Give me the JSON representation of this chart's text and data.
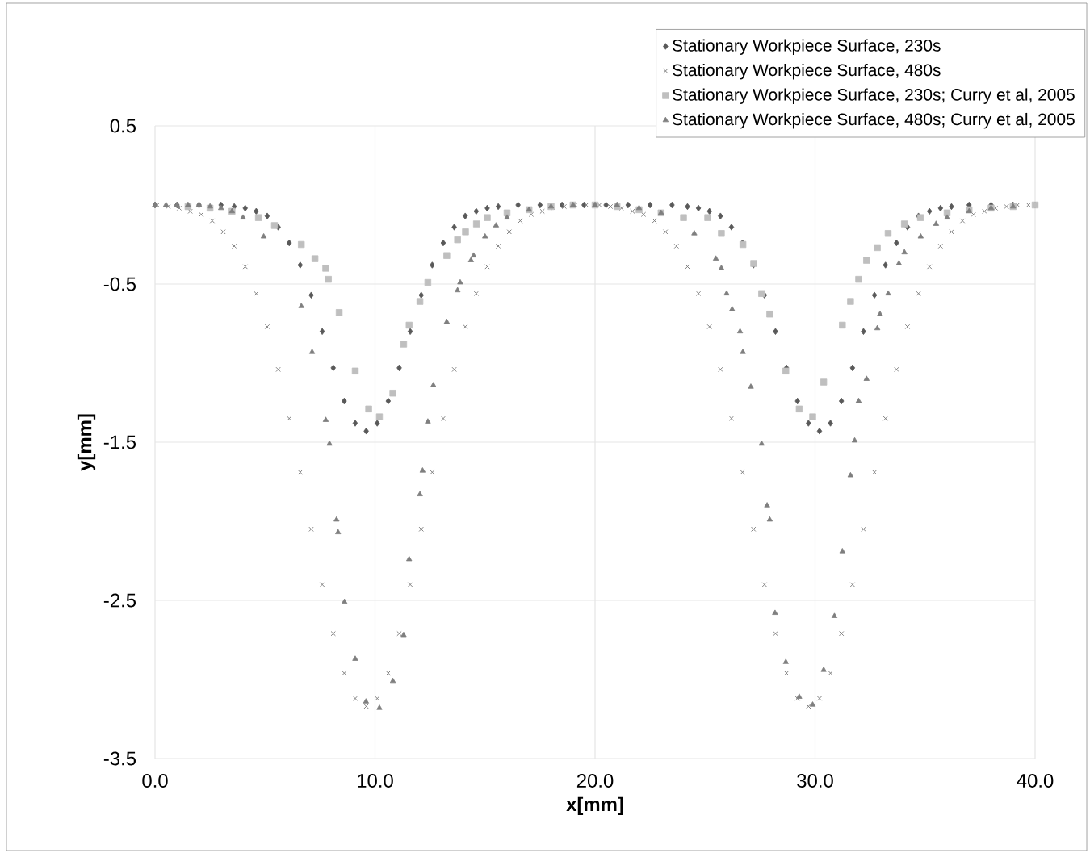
{
  "chart_data": {
    "type": "scatter",
    "xlabel": "x[mm]",
    "ylabel": "y[mm]",
    "xlim": [
      0,
      40
    ],
    "ylim": [
      -3.5,
      0.5
    ],
    "xticks": [
      {
        "value": 0,
        "label": "0.0"
      },
      {
        "value": 10,
        "label": "10.0"
      },
      {
        "value": 20,
        "label": "20.0"
      },
      {
        "value": 30,
        "label": "30.0"
      },
      {
        "value": 40,
        "label": "40.0"
      }
    ],
    "yticks": [
      0.5,
      -0.5,
      -1.5,
      -2.5,
      -3.5
    ],
    "grid": true,
    "legend": "top right",
    "series": [
      {
        "name": "Stationary Workpiece Surface, 230s",
        "color": "#595959",
        "marker": "diamond",
        "x": [
          0,
          1,
          2,
          3,
          3.6,
          4.1,
          4.6,
          5.1,
          5.6,
          6.1,
          6.6,
          7.1,
          7.6,
          8.1,
          8.6,
          9.1,
          9.6,
          10.1,
          10.6,
          11.1,
          11.6,
          12.1,
          12.6,
          13.1,
          13.6,
          14.1,
          14.6,
          15.1,
          15.6,
          16.5,
          17.5,
          18.5,
          19.5,
          20.5,
          21.5,
          22.5,
          23.5,
          24.2,
          24.7,
          25.2,
          25.7,
          26.2,
          26.7,
          27.2,
          27.7,
          28.2,
          28.7,
          29.2,
          29.7,
          30.2,
          30.7,
          31.2,
          31.7,
          32.2,
          32.7,
          33.2,
          33.7,
          34.2,
          34.7,
          35.2,
          35.7,
          36.2,
          37,
          38,
          39,
          40
        ],
        "values": [
          0,
          0,
          0,
          0,
          -0.01,
          -0.02,
          -0.04,
          -0.07,
          -0.14,
          -0.24,
          -0.38,
          -0.57,
          -0.8,
          -1.03,
          -1.24,
          -1.38,
          -1.43,
          -1.38,
          -1.24,
          -1.03,
          -0.8,
          -0.57,
          -0.38,
          -0.24,
          -0.14,
          -0.07,
          -0.04,
          -0.02,
          -0.01,
          0,
          0,
          0,
          0,
          0,
          0,
          0,
          0,
          -0.01,
          -0.02,
          -0.04,
          -0.07,
          -0.14,
          -0.24,
          -0.38,
          -0.57,
          -0.8,
          -1.03,
          -1.24,
          -1.38,
          -1.43,
          -1.38,
          -1.24,
          -1.03,
          -0.8,
          -0.57,
          -0.38,
          -0.24,
          -0.14,
          -0.07,
          -0.04,
          -0.02,
          -0.01,
          0,
          0,
          0,
          0
        ]
      },
      {
        "name": "Stationary Workpiece Surface, 480s",
        "color": "#808080",
        "marker": "cross",
        "x": [
          0.1,
          0.6,
          1.1,
          1.6,
          2.1,
          2.6,
          3.1,
          3.6,
          4.1,
          4.6,
          5.1,
          5.6,
          6.1,
          6.6,
          7.1,
          7.6,
          8.1,
          8.6,
          9.1,
          9.6,
          10.1,
          10.6,
          11.1,
          11.6,
          12.1,
          12.6,
          13.1,
          13.6,
          14.1,
          14.6,
          15.1,
          15.6,
          16.1,
          16.6,
          17.1,
          17.6,
          18.1,
          18.6,
          19.1,
          19.6,
          20.2,
          20.7,
          21.2,
          21.7,
          22.2,
          22.7,
          23.2,
          23.7,
          24.2,
          24.7,
          25.2,
          25.7,
          26.2,
          26.7,
          27.2,
          27.7,
          28.2,
          28.7,
          29.2,
          29.7,
          30.2,
          30.7,
          31.2,
          31.7,
          32.2,
          32.7,
          33.2,
          33.7,
          34.2,
          34.7,
          35.2,
          35.7,
          36.2,
          36.7,
          37.2,
          37.7,
          38.2,
          38.7,
          39.2,
          39.7
        ],
        "values": [
          0,
          -0.01,
          -0.02,
          -0.04,
          -0.06,
          -0.1,
          -0.17,
          -0.26,
          -0.39,
          -0.56,
          -0.77,
          -1.04,
          -1.35,
          -1.69,
          -2.05,
          -2.4,
          -2.71,
          -2.96,
          -3.12,
          -3.17,
          -3.12,
          -2.96,
          -2.71,
          -2.4,
          -2.05,
          -1.69,
          -1.35,
          -1.04,
          -0.77,
          -0.56,
          -0.39,
          -0.26,
          -0.17,
          -0.1,
          -0.06,
          -0.04,
          -0.02,
          -0.01,
          0,
          0,
          0,
          -0.01,
          -0.02,
          -0.04,
          -0.06,
          -0.1,
          -0.17,
          -0.26,
          -0.39,
          -0.56,
          -0.77,
          -1.04,
          -1.35,
          -1.69,
          -2.05,
          -2.4,
          -2.71,
          -2.96,
          -3.12,
          -3.17,
          -3.12,
          -2.96,
          -2.71,
          -2.4,
          -2.05,
          -1.69,
          -1.35,
          -1.04,
          -0.77,
          -0.56,
          -0.39,
          -0.26,
          -0.17,
          -0.1,
          -0.06,
          -0.04,
          -0.02,
          -0.01,
          0,
          0
        ]
      },
      {
        "name": "Stationary Workpiece Surface, 230s; Curry et al, 2005",
        "color": "#bfbfbf",
        "marker": "square",
        "x": [
          1.5,
          2.5,
          3.5,
          4.7,
          5.43,
          6.65,
          7.27,
          7.76,
          7.88,
          8.37,
          9.1,
          9.71,
          10.2,
          10.81,
          11.3,
          11.55,
          12.04,
          12.4,
          13.26,
          13.75,
          14.11,
          14.61,
          15.1,
          16,
          17,
          18,
          19,
          20,
          21,
          22,
          23,
          24.02,
          25.12,
          25.74,
          26.72,
          27.21,
          27.57,
          27.94,
          28.67,
          29.28,
          29.89,
          30.39,
          31.24,
          31.61,
          31.98,
          32.34,
          32.83,
          33.32,
          34.06,
          34.79,
          36,
          37,
          38,
          39,
          40
        ],
        "values": [
          -0.01,
          -0.02,
          -0.04,
          -0.08,
          -0.13,
          -0.25,
          -0.34,
          -0.4,
          -0.47,
          -0.68,
          -1.05,
          -1.29,
          -1.34,
          -1.19,
          -0.88,
          -0.76,
          -0.61,
          -0.49,
          -0.32,
          -0.22,
          -0.17,
          -0.12,
          -0.08,
          -0.05,
          -0.03,
          -0.01,
          0,
          0,
          -0.01,
          -0.03,
          -0.05,
          -0.08,
          -0.08,
          -0.18,
          -0.25,
          -0.37,
          -0.56,
          -0.69,
          -1.05,
          -1.29,
          -1.34,
          -1.12,
          -0.76,
          -0.61,
          -0.47,
          -0.35,
          -0.27,
          -0.18,
          -0.12,
          -0.08,
          -0.05,
          -0.03,
          -0.02,
          -0.01,
          0
        ]
      },
      {
        "name": "Stationary Workpiece Surface, 480s; Curry et al, 2005",
        "color": "#7f7f7f",
        "marker": "triangle",
        "x": [
          0,
          0.5,
          1,
          1.5,
          2,
          2.5,
          3,
          3.5,
          4,
          4.94,
          6.65,
          7.14,
          7.76,
          7.93,
          8.25,
          8.32,
          8.61,
          9.1,
          9.59,
          10.2,
          10.81,
          11.3,
          11.55,
          12.04,
          12.16,
          12.4,
          12.65,
          13.26,
          13.75,
          13.87,
          14.36,
          14.48,
          15,
          15.5,
          16,
          17,
          18,
          19,
          20,
          21,
          22,
          23,
          24.51,
          25.49,
          25.74,
          25.98,
          26.23,
          26.59,
          26.72,
          27.08,
          27.57,
          27.82,
          27.94,
          28.18,
          28.67,
          29.28,
          29.89,
          30.39,
          30.88,
          31.24,
          31.61,
          31.8,
          31.98,
          32.34,
          32.83,
          32.95,
          33.32,
          33.81,
          34.06,
          34.8,
          35.5,
          36,
          37,
          38,
          39
        ],
        "values": [
          0,
          0,
          0,
          0,
          0,
          -0.01,
          -0.02,
          -0.04,
          -0.08,
          -0.2,
          -0.64,
          -0.93,
          -1.36,
          -1.51,
          -1.99,
          -2.07,
          -2.51,
          -2.87,
          -3.14,
          -3.18,
          -3.01,
          -2.72,
          -2.24,
          -1.83,
          -1.68,
          -1.37,
          -1.14,
          -0.74,
          -0.54,
          -0.49,
          -0.35,
          -0.32,
          -0.2,
          -0.13,
          -0.08,
          -0.03,
          -0.01,
          0,
          0,
          0,
          -0.02,
          -0.05,
          -0.18,
          -0.34,
          -0.4,
          -0.56,
          -0.66,
          -0.8,
          -0.93,
          -1.15,
          -1.51,
          -1.9,
          -1.99,
          -2.58,
          -2.89,
          -3.11,
          -3.16,
          -2.94,
          -2.6,
          -2.19,
          -1.71,
          -1.49,
          -1.24,
          -1.1,
          -0.78,
          -0.69,
          -0.56,
          -0.37,
          -0.3,
          -0.2,
          -0.12,
          -0.08,
          -0.04,
          -0.02,
          -0.01
        ]
      }
    ]
  }
}
